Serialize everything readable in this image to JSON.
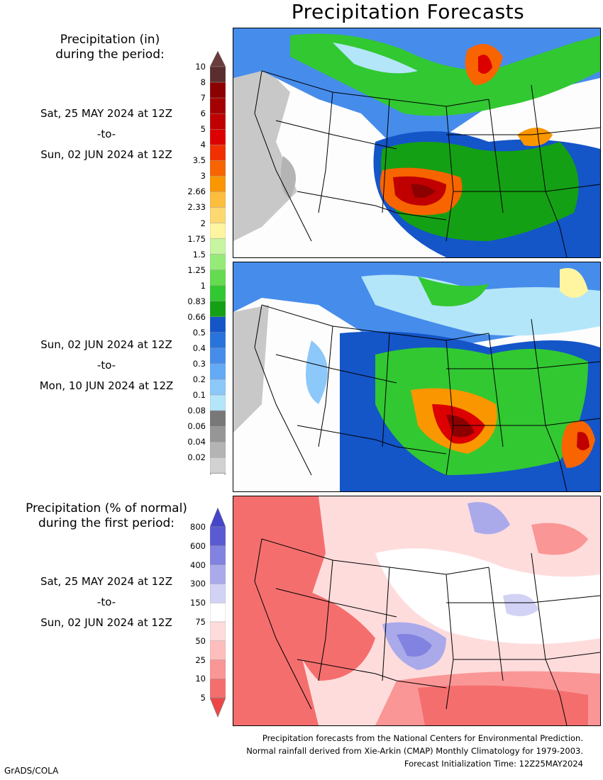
{
  "title": "Precipitation Forecasts",
  "section1": {
    "heading_line1": "Precipitation (in)",
    "heading_line2": "during the period:"
  },
  "period1": {
    "start": "Sat, 25 MAY 2024 at 12Z",
    "sep": "-to-",
    "end": "Sun, 02 JUN 2024 at 12Z"
  },
  "period2": {
    "start": "Sun, 02 JUN 2024 at 12Z",
    "sep": "-to-",
    "end": "Mon, 10 JUN 2024 at 12Z"
  },
  "precip_legend": {
    "labels": [
      "10",
      "8",
      "7",
      "6",
      "5",
      "4",
      "3.5",
      "3",
      "2.66",
      "2.33",
      "2",
      "1.75",
      "1.5",
      "1.25",
      "1",
      "0.83",
      "0.66",
      "0.5",
      "0.4",
      "0.3",
      "0.2",
      "0.1",
      "0.08",
      "0.06",
      "0.04",
      "0.02"
    ],
    "colors": [
      "#5a2e2e",
      "#8b0000",
      "#a50000",
      "#c00000",
      "#dc0000",
      "#f03000",
      "#f86400",
      "#fa9600",
      "#fcbe3c",
      "#fed870",
      "#fff5a0",
      "#c8f5a0",
      "#96eb78",
      "#64dc50",
      "#32c832",
      "#14a014",
      "#1455c8",
      "#2873dc",
      "#468ceb",
      "#64aaf5",
      "#8cc8fa",
      "#b4e6fa",
      "#787878",
      "#969696",
      "#b4b4b4",
      "#d2d2d2"
    ],
    "top_arrow_color": "#6b3c3c",
    "bottom_arrow_color": "#ffffff"
  },
  "section2": {
    "heading_line1": "Precipitation (% of normal)",
    "heading_line2": "during the first period:"
  },
  "period3": {
    "start": "Sat, 25 MAY 2024 at 12Z",
    "sep": "-to-",
    "end": "Sun, 02 JUN 2024 at 12Z"
  },
  "pct_legend": {
    "labels": [
      "800",
      "600",
      "400",
      "300",
      "150",
      "75",
      "50",
      "25",
      "10",
      "5"
    ],
    "colors": [
      "#5a5ad2",
      "#8282e1",
      "#aaaaeb",
      "#d2d2f5",
      "#ffffff",
      "#ffdcdc",
      "#ffbebe",
      "#fa9696",
      "#f56e6e"
    ],
    "top_arrow_color": "#4646c8",
    "bottom_arrow_color": "#ee4646"
  },
  "footer": {
    "line1": "Precipitation forecasts from the National Centers for Environmental Prediction.",
    "line2": "Normal rainfall derived from Xie-Arkin (CMAP) Monthly Climatology for 1979-2003.",
    "line3": "Forecast Initialization Time: 12Z25MAY2024"
  },
  "credit": "GrADS/COLA"
}
